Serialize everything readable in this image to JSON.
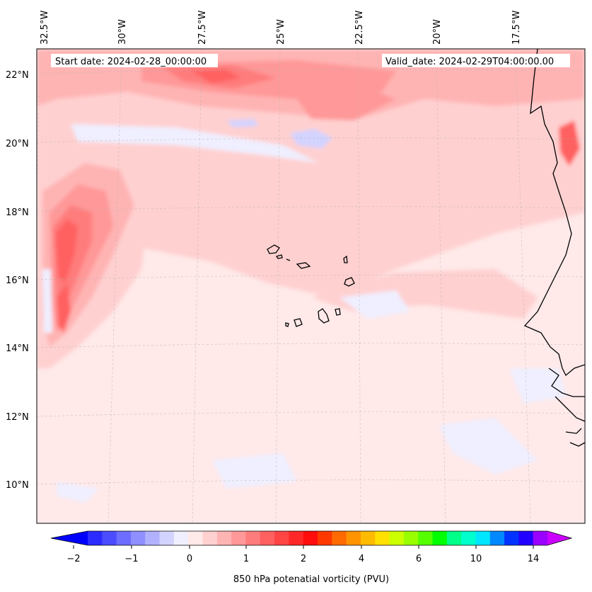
{
  "header": {
    "start_date": "Start date: 2024-02-28_00:00:00",
    "valid_date": "Valid_date: 2024-02-29T04:00:00.00"
  },
  "map": {
    "lon_labels": [
      "32.5°W",
      "30°W",
      "27.5°W",
      "25°W",
      "22.5°W",
      "20°W",
      "17.5°W"
    ],
    "lat_labels": [
      "22°N",
      "20°N",
      "18°N",
      "16°N",
      "14°N",
      "12°N",
      "10°N"
    ],
    "gridlines": true
  },
  "colorbar": {
    "label": "850 hPa potenatial vorticity (PVU)",
    "tick_labels": [
      "−2",
      "−1",
      "0",
      "1",
      "2",
      "4",
      "6",
      "10",
      "14"
    ],
    "colors": [
      "#0000ff",
      "#2b2bff",
      "#4b4bff",
      "#6d6dff",
      "#8f8fff",
      "#b1b1ff",
      "#d3d3ff",
      "#efefff",
      "#ffe9e9",
      "#ffd0d0",
      "#ffb4b4",
      "#ff9898",
      "#ff7c7c",
      "#ff6060",
      "#ff4444",
      "#ff2828",
      "#ff0c0c",
      "#ff3800",
      "#ff6a00",
      "#ff9400",
      "#ffbb00",
      "#ffe000",
      "#ccff00",
      "#99ff00",
      "#55ff00",
      "#00ff00",
      "#00ff88",
      "#00ffcc",
      "#00e6ff",
      "#0088ff",
      "#0033ff",
      "#2200ff",
      "#9900ff",
      "#cc00ff"
    ],
    "extend": "both"
  }
}
